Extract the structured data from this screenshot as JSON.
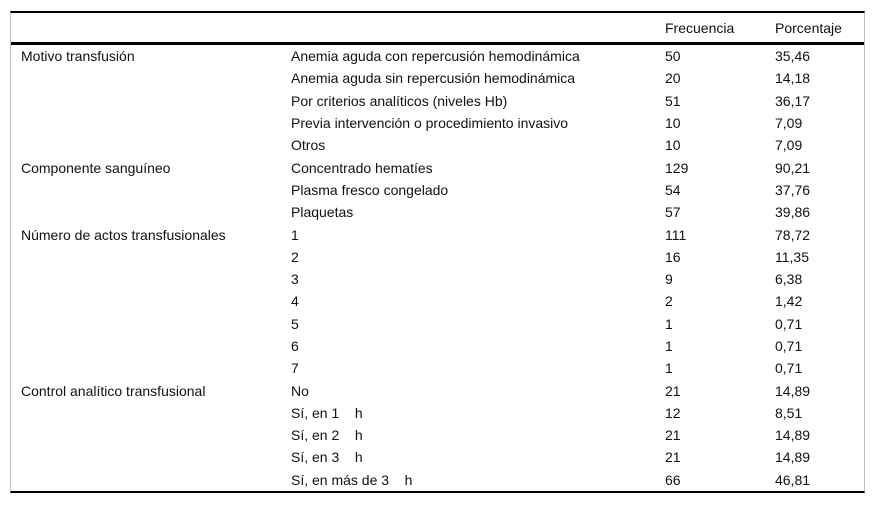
{
  "table": {
    "headers": {
      "frecuencia": "Frecuencia",
      "porcentaje": "Porcentaje"
    },
    "colors": {
      "rule": "#000000",
      "edge": "#bdbdbd",
      "text": "#111111",
      "background": "#ffffff"
    },
    "group_names": [
      "Motivo transfusión",
      "Componente sanguíneo",
      "Número de actos transfusionales",
      "Control analítico transfusional"
    ],
    "rows": [
      {
        "group": "Motivo transfusión",
        "label": "Anemia aguda con repercusión hemodinámica",
        "freq": "50",
        "pct": "35,46"
      },
      {
        "group": "",
        "label": "Anemia aguda sin repercusión hemodinámica",
        "freq": "20",
        "pct": "14,18"
      },
      {
        "group": "",
        "label": "Por criterios analíticos (niveles Hb)",
        "freq": "51",
        "pct": "36,17"
      },
      {
        "group": "",
        "label": "Previa intervención o procedimiento invasivo",
        "freq": "10",
        "pct": "7,09"
      },
      {
        "group": "",
        "label": "Otros",
        "freq": "10",
        "pct": "7,09"
      },
      {
        "group": "Componente sanguíneo",
        "label": "Concentrado hematíes",
        "freq": "129",
        "pct": "90,21"
      },
      {
        "group": "",
        "label": "Plasma fresco congelado",
        "freq": "54",
        "pct": "37,76"
      },
      {
        "group": "",
        "label": "Plaquetas",
        "freq": "57",
        "pct": "39,86"
      },
      {
        "group": "Número de actos transfusionales",
        "label": "1",
        "freq": "111",
        "pct": "78,72"
      },
      {
        "group": "",
        "label": "2",
        "freq": "16",
        "pct": "11,35"
      },
      {
        "group": "",
        "label": "3",
        "freq": "9",
        "pct": "6,38"
      },
      {
        "group": "",
        "label": "4",
        "freq": "2",
        "pct": "1,42"
      },
      {
        "group": "",
        "label": "5",
        "freq": "1",
        "pct": "0,71"
      },
      {
        "group": "",
        "label": "6",
        "freq": "1",
        "pct": "0,71"
      },
      {
        "group": "",
        "label": "7",
        "freq": "1",
        "pct": "0,71"
      },
      {
        "group": "Control analítico transfusional",
        "label": "No",
        "freq": "21",
        "pct": "14,89"
      },
      {
        "group": "",
        "label": "Sí, en 1    h",
        "freq": "12",
        "pct": "8,51"
      },
      {
        "group": "",
        "label": "Sí, en 2    h",
        "freq": "21",
        "pct": "14,89"
      },
      {
        "group": "",
        "label": "Sí, en 3    h",
        "freq": "21",
        "pct": "14,89"
      },
      {
        "group": "",
        "label": "Sí, en más de 3    h",
        "freq": "66",
        "pct": "46,81"
      }
    ]
  }
}
